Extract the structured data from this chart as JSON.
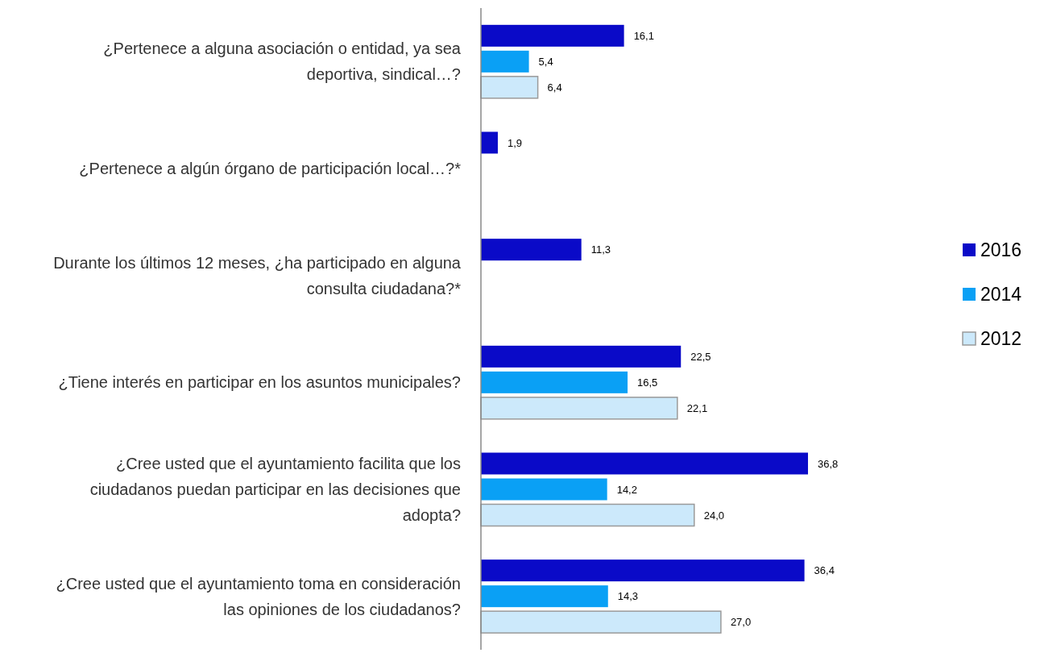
{
  "chart_data": {
    "type": "bar",
    "orientation": "horizontal",
    "categories": [
      "¿Pertenece a alguna asociación o entidad, ya sea deportiva, sindical…?",
      "¿Pertenece a algún órgano de participación local…?*",
      "Durante los últimos 12 meses, ¿ha participado en alguna consulta ciudadana?*",
      "¿Tiene interés en participar en los asuntos municipales?",
      "¿Cree usted que el ayuntamiento facilita que los ciudadanos puedan participar en las decisiones que adopta?",
      "¿Cree usted que el ayuntamiento toma en consideración las opiniones de los ciudadanos?"
    ],
    "series": [
      {
        "name": "2016",
        "color": "#0a0ac8",
        "values": [
          16.1,
          1.9,
          11.3,
          22.5,
          36.8,
          36.4
        ],
        "value_labels": [
          "16,1",
          "1,9",
          "11,3",
          "22,5",
          "36,8",
          "36,4"
        ]
      },
      {
        "name": "2014",
        "color": "#0aa0f5",
        "values": [
          5.4,
          null,
          null,
          16.5,
          14.2,
          14.3
        ],
        "value_labels": [
          "5,4",
          null,
          null,
          "16,5",
          "14,2",
          "14,3"
        ]
      },
      {
        "name": "2012",
        "color": "#cce9fb",
        "values": [
          6.4,
          null,
          null,
          22.1,
          24.0,
          27.0
        ],
        "value_labels": [
          "6,4",
          null,
          null,
          "22,1",
          "24,0",
          "27,0"
        ]
      }
    ],
    "tick_labels": "y",
    "legend": "right",
    "grid": false
  }
}
